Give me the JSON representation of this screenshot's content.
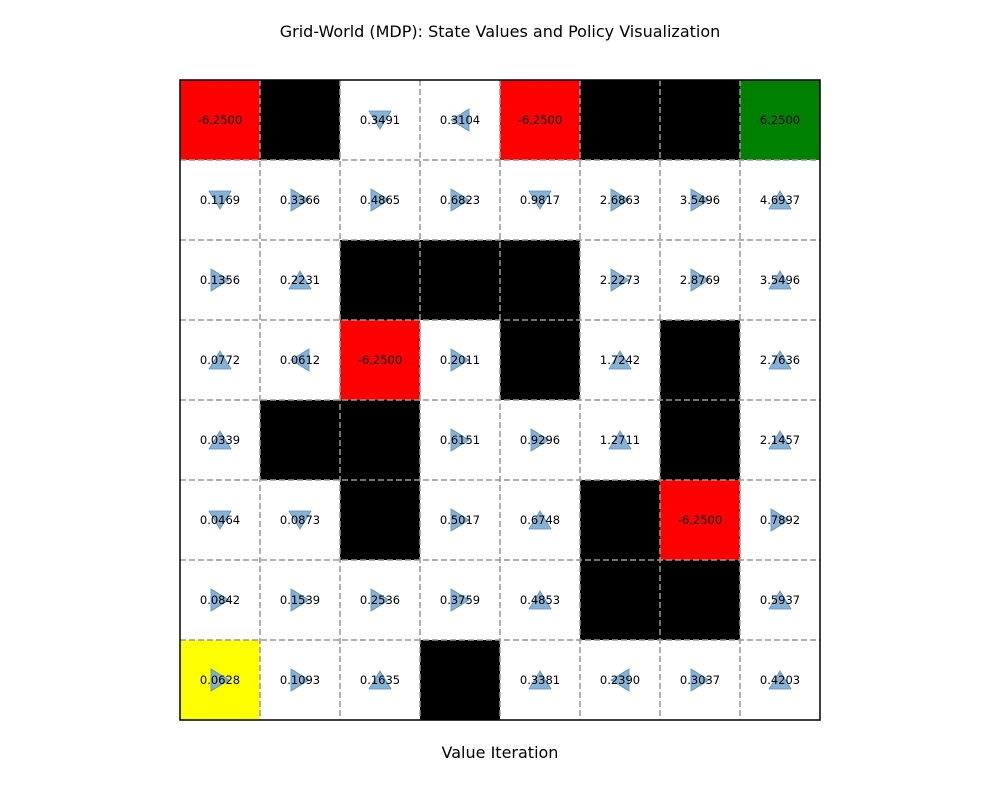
{
  "title": "Grid-World (MDP): State Values and Policy Visualization",
  "xlabel": "Value Iteration",
  "colors": {
    "empty": "#ffffff",
    "wall": "#000000",
    "trap": "#ff0000",
    "goal": "#008000",
    "start": "#ffff00",
    "arrow": "#7aa8d0",
    "gridline": "#999999"
  },
  "grid": {
    "rows": 8,
    "cols": 8,
    "cells": [
      [
        {
          "type": "trap",
          "value": "-6.2500",
          "action": null
        },
        {
          "type": "wall",
          "value": null,
          "action": null
        },
        {
          "type": "empty",
          "value": "0.3491",
          "action": "down"
        },
        {
          "type": "empty",
          "value": "0.3104",
          "action": "left"
        },
        {
          "type": "trap",
          "value": "-6.2500",
          "action": null
        },
        {
          "type": "wall",
          "value": null,
          "action": null
        },
        {
          "type": "wall",
          "value": null,
          "action": null
        },
        {
          "type": "goal",
          "value": "6.2500",
          "action": null
        }
      ],
      [
        {
          "type": "empty",
          "value": "0.1169",
          "action": "down"
        },
        {
          "type": "empty",
          "value": "0.3366",
          "action": "right"
        },
        {
          "type": "empty",
          "value": "0.4865",
          "action": "right"
        },
        {
          "type": "empty",
          "value": "0.6823",
          "action": "right"
        },
        {
          "type": "empty",
          "value": "0.9817",
          "action": "down"
        },
        {
          "type": "empty",
          "value": "2.6863",
          "action": "right"
        },
        {
          "type": "empty",
          "value": "3.5496",
          "action": "right"
        },
        {
          "type": "empty",
          "value": "4.6937",
          "action": "up"
        }
      ],
      [
        {
          "type": "empty",
          "value": "0.1356",
          "action": "right"
        },
        {
          "type": "empty",
          "value": "0.2231",
          "action": "up"
        },
        {
          "type": "wall",
          "value": null,
          "action": null
        },
        {
          "type": "wall",
          "value": null,
          "action": null
        },
        {
          "type": "wall",
          "value": null,
          "action": null
        },
        {
          "type": "empty",
          "value": "2.2273",
          "action": "right"
        },
        {
          "type": "empty",
          "value": "2.8769",
          "action": "right"
        },
        {
          "type": "empty",
          "value": "3.5496",
          "action": "up"
        }
      ],
      [
        {
          "type": "empty",
          "value": "0.0772",
          "action": "up"
        },
        {
          "type": "empty",
          "value": "0.0612",
          "action": "left"
        },
        {
          "type": "trap",
          "value": "-6.2500",
          "action": null
        },
        {
          "type": "empty",
          "value": "0.2011",
          "action": "right"
        },
        {
          "type": "wall",
          "value": null,
          "action": null
        },
        {
          "type": "empty",
          "value": "1.7242",
          "action": "up"
        },
        {
          "type": "wall",
          "value": null,
          "action": null
        },
        {
          "type": "empty",
          "value": "2.7636",
          "action": "up"
        }
      ],
      [
        {
          "type": "empty",
          "value": "0.0339",
          "action": "up"
        },
        {
          "type": "wall",
          "value": null,
          "action": null
        },
        {
          "type": "wall",
          "value": null,
          "action": null
        },
        {
          "type": "empty",
          "value": "0.6151",
          "action": "right"
        },
        {
          "type": "empty",
          "value": "0.9296",
          "action": "right"
        },
        {
          "type": "empty",
          "value": "1.2711",
          "action": "up"
        },
        {
          "type": "wall",
          "value": null,
          "action": null
        },
        {
          "type": "empty",
          "value": "2.1457",
          "action": "up"
        }
      ],
      [
        {
          "type": "empty",
          "value": "0.0464",
          "action": "down"
        },
        {
          "type": "empty",
          "value": "0.0873",
          "action": "down"
        },
        {
          "type": "wall",
          "value": null,
          "action": null
        },
        {
          "type": "empty",
          "value": "0.5017",
          "action": "right"
        },
        {
          "type": "empty",
          "value": "0.6748",
          "action": "up"
        },
        {
          "type": "wall",
          "value": null,
          "action": null
        },
        {
          "type": "trap",
          "value": "-6.2500",
          "action": null
        },
        {
          "type": "empty",
          "value": "0.7892",
          "action": "right"
        }
      ],
      [
        {
          "type": "empty",
          "value": "0.0842",
          "action": "right"
        },
        {
          "type": "empty",
          "value": "0.1539",
          "action": "right"
        },
        {
          "type": "empty",
          "value": "0.2536",
          "action": "right"
        },
        {
          "type": "empty",
          "value": "0.3759",
          "action": "right"
        },
        {
          "type": "empty",
          "value": "0.4853",
          "action": "up"
        },
        {
          "type": "wall",
          "value": null,
          "action": null
        },
        {
          "type": "wall",
          "value": null,
          "action": null
        },
        {
          "type": "empty",
          "value": "0.5937",
          "action": "up"
        }
      ],
      [
        {
          "type": "start",
          "value": "0.0628",
          "action": "right"
        },
        {
          "type": "empty",
          "value": "0.1093",
          "action": "right"
        },
        {
          "type": "empty",
          "value": "0.1635",
          "action": "up"
        },
        {
          "type": "wall",
          "value": null,
          "action": null
        },
        {
          "type": "empty",
          "value": "0.3381",
          "action": "up"
        },
        {
          "type": "empty",
          "value": "0.2390",
          "action": "left"
        },
        {
          "type": "empty",
          "value": "0.3037",
          "action": "right"
        },
        {
          "type": "empty",
          "value": "0.4203",
          "action": "up"
        }
      ]
    ]
  }
}
